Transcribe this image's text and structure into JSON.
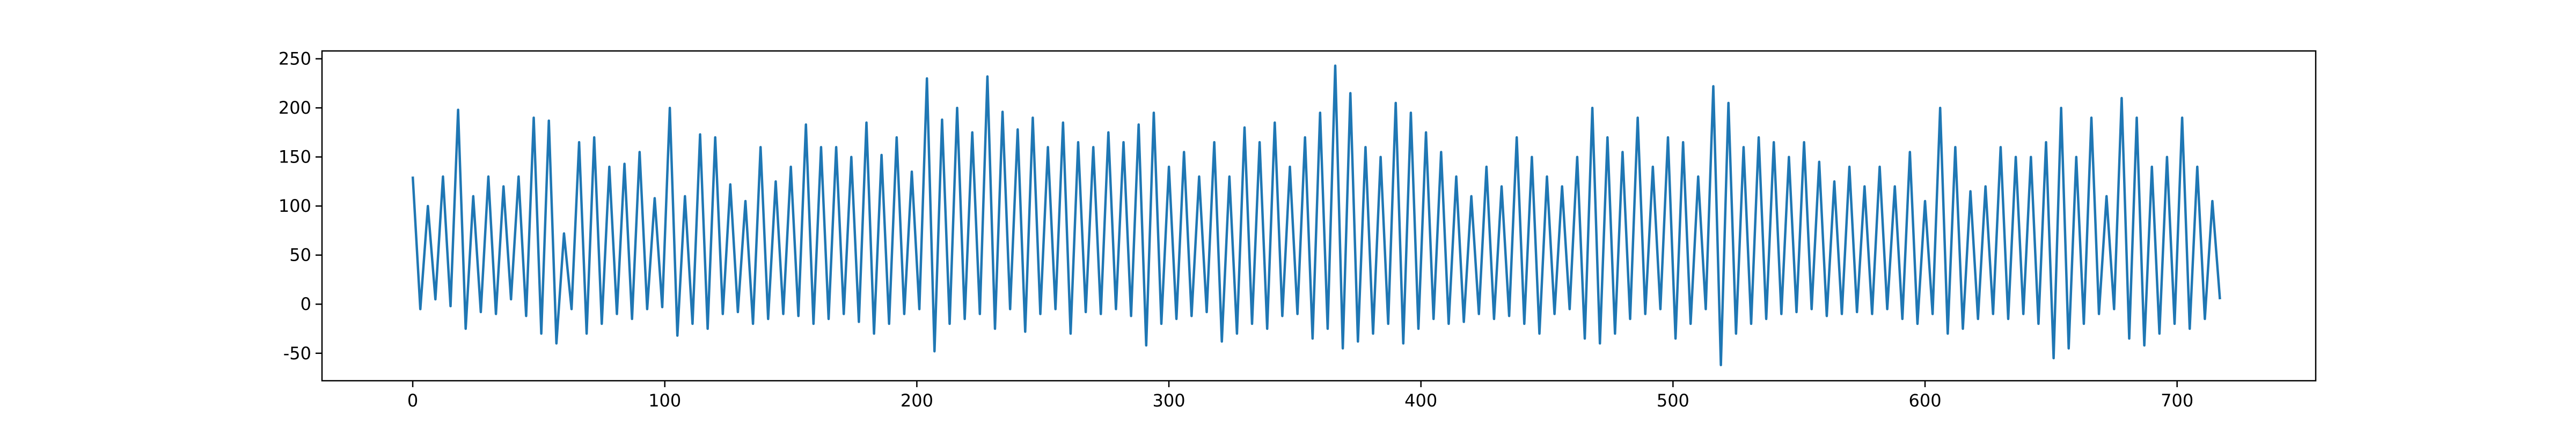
{
  "chart_data": {
    "type": "line",
    "color": "#1f77b4",
    "x": [
      0,
      3,
      6,
      9,
      12,
      15,
      18,
      21,
      24,
      27,
      30,
      33,
      36,
      39,
      42,
      45,
      48,
      51,
      54,
      57,
      60,
      63,
      66,
      69,
      72,
      75,
      78,
      81,
      84,
      87,
      90,
      93,
      96,
      99,
      102,
      105,
      108,
      111,
      114,
      117,
      120,
      123,
      126,
      129,
      132,
      135,
      138,
      141,
      144,
      147,
      150,
      153,
      156,
      159,
      162,
      165,
      168,
      171,
      174,
      177,
      180,
      183,
      186,
      189,
      192,
      195,
      198,
      201,
      204,
      207,
      210,
      213,
      216,
      219,
      222,
      225,
      228,
      231,
      234,
      237,
      240,
      243,
      246,
      249,
      252,
      255,
      258,
      261,
      264,
      267,
      270,
      273,
      276,
      279,
      282,
      285,
      288,
      291,
      294,
      297,
      300,
      303,
      306,
      309,
      312,
      315,
      318,
      321,
      324,
      327,
      330,
      333,
      336,
      339,
      342,
      345,
      348,
      351,
      354,
      357,
      360,
      363,
      366,
      369,
      372,
      375,
      378,
      381,
      384,
      387,
      390,
      393,
      396,
      399,
      402,
      405,
      408,
      411,
      414,
      417,
      420,
      423,
      426,
      429,
      432,
      435,
      438,
      441,
      444,
      447,
      450,
      453,
      456,
      459,
      462,
      465,
      468,
      471,
      474,
      477,
      480,
      483,
      486,
      489,
      492,
      495,
      498,
      501,
      504,
      507,
      510,
      513,
      516,
      519,
      522,
      525,
      528,
      531,
      534,
      537,
      540,
      543,
      546,
      549,
      552,
      555,
      558,
      561,
      564,
      567,
      570,
      573,
      576,
      579,
      582,
      585,
      588,
      591,
      594,
      597,
      600,
      603,
      606,
      609,
      612,
      615,
      618,
      621,
      624,
      627,
      630,
      633,
      636,
      639,
      642,
      645,
      648,
      651,
      654,
      657,
      660,
      663,
      666,
      669,
      672,
      675,
      678,
      681,
      684,
      687,
      690,
      693,
      696,
      699,
      702,
      705,
      708,
      711,
      714,
      717
    ],
    "values": [
      130,
      -5,
      100,
      5,
      130,
      -2,
      198,
      -25,
      110,
      -8,
      130,
      -10,
      120,
      5,
      130,
      -12,
      190,
      -30,
      187,
      -40,
      72,
      -5,
      165,
      -30,
      170,
      -20,
      140,
      -10,
      143,
      -15,
      155,
      -5,
      108,
      -3,
      200,
      -32,
      110,
      -20,
      173,
      -25,
      170,
      -10,
      122,
      -8,
      105,
      -20,
      160,
      -15,
      125,
      -10,
      140,
      -12,
      183,
      -20,
      160,
      -15,
      160,
      -10,
      150,
      -18,
      185,
      -30,
      152,
      -20,
      170,
      -10,
      135,
      -5,
      230,
      -48,
      188,
      -20,
      200,
      -15,
      175,
      -10,
      232,
      -25,
      196,
      -5,
      178,
      -28,
      190,
      -10,
      160,
      -5,
      185,
      -30,
      165,
      -8,
      160,
      -10,
      175,
      -5,
      165,
      -12,
      183,
      -42,
      195,
      -20,
      140,
      -15,
      155,
      -12,
      130,
      -8,
      165,
      -38,
      130,
      -30,
      180,
      -20,
      165,
      -25,
      185,
      -12,
      140,
      -10,
      170,
      -35,
      195,
      -25,
      243,
      -45,
      215,
      -38,
      160,
      -30,
      150,
      -20,
      205,
      -40,
      195,
      -25,
      175,
      -15,
      155,
      -20,
      130,
      -18,
      110,
      -10,
      140,
      -15,
      120,
      -12,
      170,
      -20,
      150,
      -30,
      130,
      -10,
      120,
      -5,
      150,
      -35,
      200,
      -40,
      170,
      -30,
      155,
      -15,
      190,
      -10,
      140,
      -5,
      170,
      -35,
      165,
      -20,
      130,
      -5,
      222,
      -62,
      205,
      -30,
      160,
      -20,
      170,
      -15,
      165,
      -10,
      150,
      -8,
      165,
      -5,
      145,
      -12,
      125,
      -10,
      140,
      -8,
      120,
      -10,
      140,
      -5,
      120,
      -15,
      155,
      -20,
      105,
      -10,
      200,
      -30,
      160,
      -25,
      115,
      -15,
      120,
      -10,
      160,
      -15,
      150,
      -10,
      150,
      -20,
      165,
      -55,
      200,
      -45,
      150,
      -20,
      190,
      -10,
      110,
      -5,
      210,
      -35,
      190,
      -42,
      140,
      -30,
      150,
      -20,
      190,
      -25,
      140,
      -15,
      105,
      5
    ],
    "xlim": [
      -36,
      755
    ],
    "xticks": [
      0,
      100,
      200,
      300,
      400,
      500,
      600,
      700
    ],
    "ylim": [
      -78,
      258
    ],
    "yticks": [
      -50,
      0,
      50,
      100,
      150,
      200,
      250
    ]
  }
}
